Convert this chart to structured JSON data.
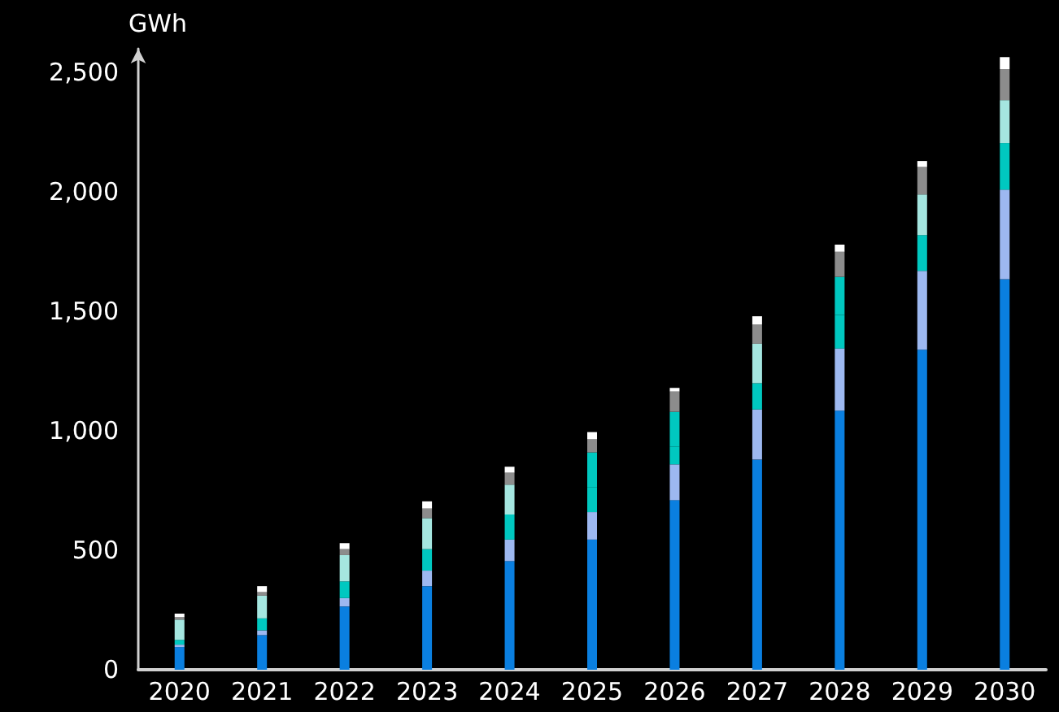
{
  "chart_data": {
    "type": "bar",
    "stacked": true,
    "ylabel": "GWh",
    "categories": [
      "2020",
      "2021",
      "2022",
      "2023",
      "2024",
      "2025",
      "2026",
      "2027",
      "2028",
      "2029",
      "2030"
    ],
    "ylim": [
      0,
      2600
    ],
    "yticks": [
      {
        "value": 0,
        "label": "0"
      },
      {
        "value": 500,
        "label": "500"
      },
      {
        "value": 1000,
        "label": "1,000"
      },
      {
        "value": 1500,
        "label": "1,500"
      },
      {
        "value": 2000,
        "label": "2,000"
      },
      {
        "value": 2500,
        "label": "2,500"
      }
    ],
    "grid": false,
    "series": [
      {
        "color": "#0a7fe0",
        "values": [
          95,
          145,
          265,
          350,
          455,
          545,
          710,
          880,
          1085,
          1340,
          1635
        ]
      },
      {
        "color": "#9db8f0",
        "values": [
          10,
          20,
          35,
          65,
          90,
          115,
          150,
          210,
          260,
          330,
          375
        ]
      },
      {
        "color": "#00c8c0",
        "values": [
          20,
          50,
          70,
          90,
          105,
          105,
          75,
          110,
          140,
          150,
          195
        ]
      },
      {
        "color": "#a5e6e0",
        "colors": [
          "#a5e6e0",
          "#a5e6e0",
          "#a5e6e0",
          "#a5e6e0",
          "#a5e6e0",
          "#00c8c0",
          "#00c8c0",
          "#a5e6e0",
          "#00c8c0",
          "#a5e6e0",
          "#a5e6e0"
        ],
        "values": [
          85,
          95,
          110,
          130,
          125,
          145,
          145,
          165,
          160,
          170,
          180
        ]
      },
      {
        "color": "#8c8c8c",
        "values": [
          10,
          15,
          25,
          40,
          50,
          55,
          85,
          80,
          105,
          115,
          130
        ]
      },
      {
        "color": "#ffffff",
        "values": [
          15,
          25,
          25,
          30,
          25,
          30,
          15,
          35,
          30,
          25,
          50
        ]
      }
    ]
  }
}
